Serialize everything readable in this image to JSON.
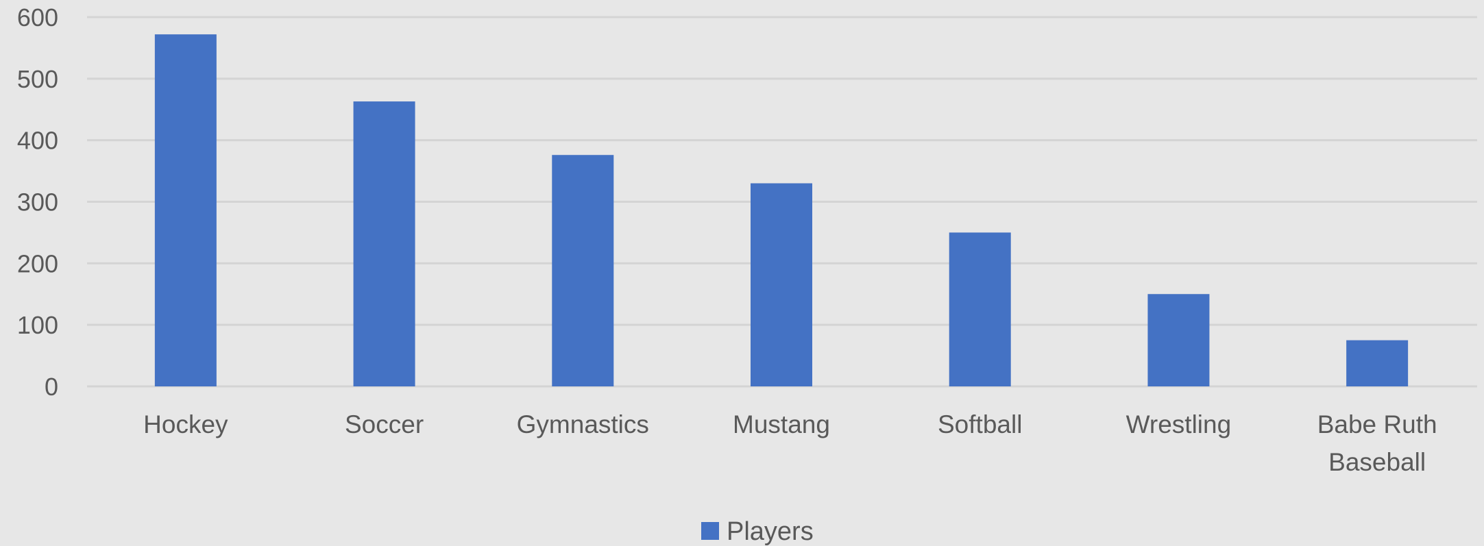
{
  "chart_data": {
    "type": "bar",
    "title": "",
    "xlabel": "",
    "ylabel": "",
    "categories": [
      "Hockey",
      "Soccer",
      "Gymnastics",
      "Mustang",
      "Softball",
      "Wrestling",
      "Babe Ruth Baseball"
    ],
    "series": [
      {
        "name": "Players",
        "color": "#4472c4",
        "values": [
          572,
          463,
          376,
          330,
          250,
          150,
          75
        ]
      }
    ],
    "ylim": [
      0,
      600
    ],
    "yticks": [
      "0",
      "100",
      "200",
      "300",
      "400",
      "500",
      "600"
    ],
    "grid": true,
    "legend": "bottom-center"
  }
}
